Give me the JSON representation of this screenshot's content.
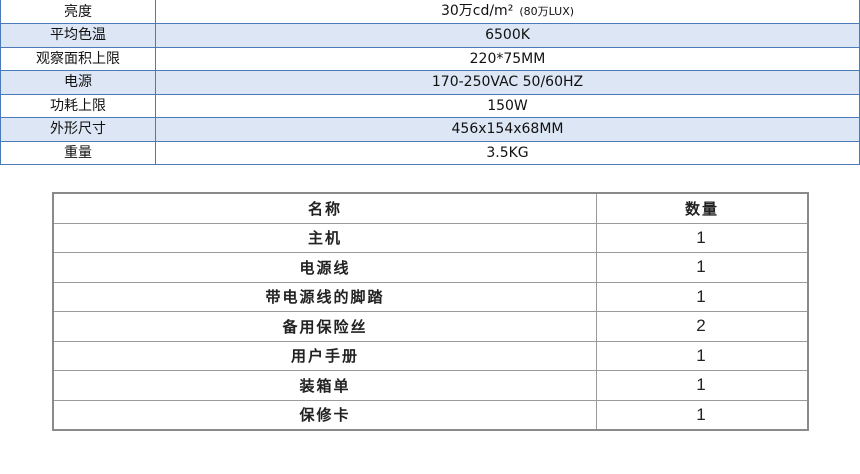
{
  "spec": [
    {
      "key": "亮度",
      "value": "30万cd/m²",
      "note": "(80万LUX)"
    },
    {
      "key": "平均色温",
      "value": "6500K"
    },
    {
      "key": "观察面积上限",
      "value": "220*75MM"
    },
    {
      "key": "电源",
      "value": "170-250VAC 50/60HZ"
    },
    {
      "key": "功耗上限",
      "value": "150W"
    },
    {
      "key": "外形尺寸",
      "value": "456x154x68MM"
    },
    {
      "key": "重量",
      "value": "3.5KG"
    }
  ],
  "packing": {
    "headers": [
      "名称",
      "数量"
    ],
    "rows": [
      [
        "主机",
        "1"
      ],
      [
        "电源线",
        "1"
      ],
      [
        "带电源线的脚踏",
        "1"
      ],
      [
        "备用保险丝",
        "2"
      ],
      [
        "用户手册",
        "1"
      ],
      [
        "装箱单",
        "1"
      ],
      [
        "保修卡",
        "1"
      ]
    ]
  }
}
